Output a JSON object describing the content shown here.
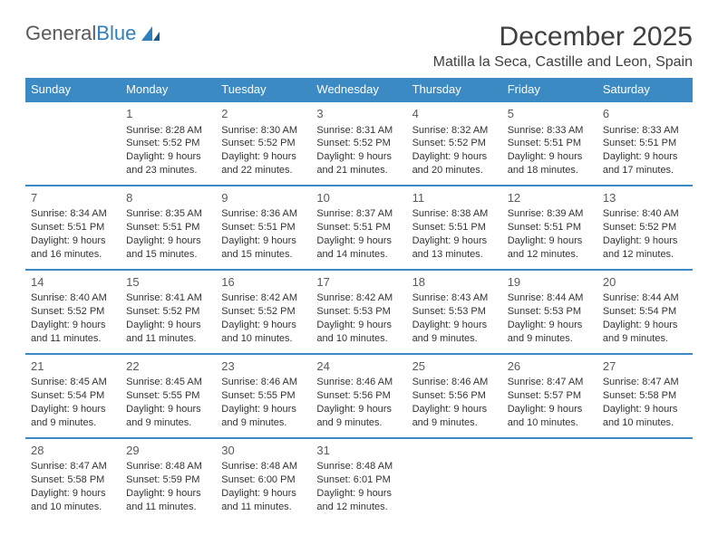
{
  "logo": {
    "text1": "General",
    "text2": "Blue"
  },
  "title": "December 2025",
  "location": "Matilla la Seca, Castille and Leon, Spain",
  "colors": {
    "header_bg": "#3b8ac4",
    "header_fg": "#ffffff",
    "row_border": "#3b8ac4",
    "text": "#333333",
    "logo_gray": "#5a5a5a",
    "logo_blue": "#2f7fbf"
  },
  "weekdays": [
    "Sunday",
    "Monday",
    "Tuesday",
    "Wednesday",
    "Thursday",
    "Friday",
    "Saturday"
  ],
  "weeks": [
    [
      null,
      {
        "n": "1",
        "sr": "Sunrise: 8:28 AM",
        "ss": "Sunset: 5:52 PM",
        "d1": "Daylight: 9 hours",
        "d2": "and 23 minutes."
      },
      {
        "n": "2",
        "sr": "Sunrise: 8:30 AM",
        "ss": "Sunset: 5:52 PM",
        "d1": "Daylight: 9 hours",
        "d2": "and 22 minutes."
      },
      {
        "n": "3",
        "sr": "Sunrise: 8:31 AM",
        "ss": "Sunset: 5:52 PM",
        "d1": "Daylight: 9 hours",
        "d2": "and 21 minutes."
      },
      {
        "n": "4",
        "sr": "Sunrise: 8:32 AM",
        "ss": "Sunset: 5:52 PM",
        "d1": "Daylight: 9 hours",
        "d2": "and 20 minutes."
      },
      {
        "n": "5",
        "sr": "Sunrise: 8:33 AM",
        "ss": "Sunset: 5:51 PM",
        "d1": "Daylight: 9 hours",
        "d2": "and 18 minutes."
      },
      {
        "n": "6",
        "sr": "Sunrise: 8:33 AM",
        "ss": "Sunset: 5:51 PM",
        "d1": "Daylight: 9 hours",
        "d2": "and 17 minutes."
      }
    ],
    [
      {
        "n": "7",
        "sr": "Sunrise: 8:34 AM",
        "ss": "Sunset: 5:51 PM",
        "d1": "Daylight: 9 hours",
        "d2": "and 16 minutes."
      },
      {
        "n": "8",
        "sr": "Sunrise: 8:35 AM",
        "ss": "Sunset: 5:51 PM",
        "d1": "Daylight: 9 hours",
        "d2": "and 15 minutes."
      },
      {
        "n": "9",
        "sr": "Sunrise: 8:36 AM",
        "ss": "Sunset: 5:51 PM",
        "d1": "Daylight: 9 hours",
        "d2": "and 15 minutes."
      },
      {
        "n": "10",
        "sr": "Sunrise: 8:37 AM",
        "ss": "Sunset: 5:51 PM",
        "d1": "Daylight: 9 hours",
        "d2": "and 14 minutes."
      },
      {
        "n": "11",
        "sr": "Sunrise: 8:38 AM",
        "ss": "Sunset: 5:51 PM",
        "d1": "Daylight: 9 hours",
        "d2": "and 13 minutes."
      },
      {
        "n": "12",
        "sr": "Sunrise: 8:39 AM",
        "ss": "Sunset: 5:51 PM",
        "d1": "Daylight: 9 hours",
        "d2": "and 12 minutes."
      },
      {
        "n": "13",
        "sr": "Sunrise: 8:40 AM",
        "ss": "Sunset: 5:52 PM",
        "d1": "Daylight: 9 hours",
        "d2": "and 12 minutes."
      }
    ],
    [
      {
        "n": "14",
        "sr": "Sunrise: 8:40 AM",
        "ss": "Sunset: 5:52 PM",
        "d1": "Daylight: 9 hours",
        "d2": "and 11 minutes."
      },
      {
        "n": "15",
        "sr": "Sunrise: 8:41 AM",
        "ss": "Sunset: 5:52 PM",
        "d1": "Daylight: 9 hours",
        "d2": "and 11 minutes."
      },
      {
        "n": "16",
        "sr": "Sunrise: 8:42 AM",
        "ss": "Sunset: 5:52 PM",
        "d1": "Daylight: 9 hours",
        "d2": "and 10 minutes."
      },
      {
        "n": "17",
        "sr": "Sunrise: 8:42 AM",
        "ss": "Sunset: 5:53 PM",
        "d1": "Daylight: 9 hours",
        "d2": "and 10 minutes."
      },
      {
        "n": "18",
        "sr": "Sunrise: 8:43 AM",
        "ss": "Sunset: 5:53 PM",
        "d1": "Daylight: 9 hours",
        "d2": "and 9 minutes."
      },
      {
        "n": "19",
        "sr": "Sunrise: 8:44 AM",
        "ss": "Sunset: 5:53 PM",
        "d1": "Daylight: 9 hours",
        "d2": "and 9 minutes."
      },
      {
        "n": "20",
        "sr": "Sunrise: 8:44 AM",
        "ss": "Sunset: 5:54 PM",
        "d1": "Daylight: 9 hours",
        "d2": "and 9 minutes."
      }
    ],
    [
      {
        "n": "21",
        "sr": "Sunrise: 8:45 AM",
        "ss": "Sunset: 5:54 PM",
        "d1": "Daylight: 9 hours",
        "d2": "and 9 minutes."
      },
      {
        "n": "22",
        "sr": "Sunrise: 8:45 AM",
        "ss": "Sunset: 5:55 PM",
        "d1": "Daylight: 9 hours",
        "d2": "and 9 minutes."
      },
      {
        "n": "23",
        "sr": "Sunrise: 8:46 AM",
        "ss": "Sunset: 5:55 PM",
        "d1": "Daylight: 9 hours",
        "d2": "and 9 minutes."
      },
      {
        "n": "24",
        "sr": "Sunrise: 8:46 AM",
        "ss": "Sunset: 5:56 PM",
        "d1": "Daylight: 9 hours",
        "d2": "and 9 minutes."
      },
      {
        "n": "25",
        "sr": "Sunrise: 8:46 AM",
        "ss": "Sunset: 5:56 PM",
        "d1": "Daylight: 9 hours",
        "d2": "and 9 minutes."
      },
      {
        "n": "26",
        "sr": "Sunrise: 8:47 AM",
        "ss": "Sunset: 5:57 PM",
        "d1": "Daylight: 9 hours",
        "d2": "and 10 minutes."
      },
      {
        "n": "27",
        "sr": "Sunrise: 8:47 AM",
        "ss": "Sunset: 5:58 PM",
        "d1": "Daylight: 9 hours",
        "d2": "and 10 minutes."
      }
    ],
    [
      {
        "n": "28",
        "sr": "Sunrise: 8:47 AM",
        "ss": "Sunset: 5:58 PM",
        "d1": "Daylight: 9 hours",
        "d2": "and 10 minutes."
      },
      {
        "n": "29",
        "sr": "Sunrise: 8:48 AM",
        "ss": "Sunset: 5:59 PM",
        "d1": "Daylight: 9 hours",
        "d2": "and 11 minutes."
      },
      {
        "n": "30",
        "sr": "Sunrise: 8:48 AM",
        "ss": "Sunset: 6:00 PM",
        "d1": "Daylight: 9 hours",
        "d2": "and 11 minutes."
      },
      {
        "n": "31",
        "sr": "Sunrise: 8:48 AM",
        "ss": "Sunset: 6:01 PM",
        "d1": "Daylight: 9 hours",
        "d2": "and 12 minutes."
      },
      null,
      null,
      null
    ]
  ]
}
